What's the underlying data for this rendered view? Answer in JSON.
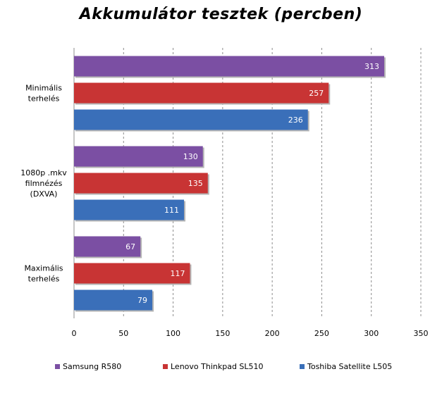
{
  "chart_data": {
    "type": "bar",
    "orientation": "horizontal",
    "title": "Akkumulátor tesztek (percben)",
    "categories": [
      [
        "Minimális",
        "terhelés"
      ],
      [
        "1080p .mkv",
        "filmnézés",
        "(DXVA)"
      ],
      [
        "Maximális",
        "terhelés"
      ]
    ],
    "series": [
      {
        "name": "Samsung R580",
        "color": "#7b4fa3",
        "values": [
          313,
          130,
          67
        ]
      },
      {
        "name": "Lenovo Thinkpad SL510",
        "color": "#c83434",
        "values": [
          257,
          135,
          117
        ]
      },
      {
        "name": "Toshiba Satellite L505",
        "color": "#3a6fb9",
        "values": [
          236,
          111,
          79
        ]
      }
    ],
    "xlim": [
      0,
      350
    ],
    "xticks": [
      0,
      50,
      100,
      150,
      200,
      250,
      300,
      350
    ],
    "grid": "vertical-dashed",
    "legend_position": "bottom"
  }
}
